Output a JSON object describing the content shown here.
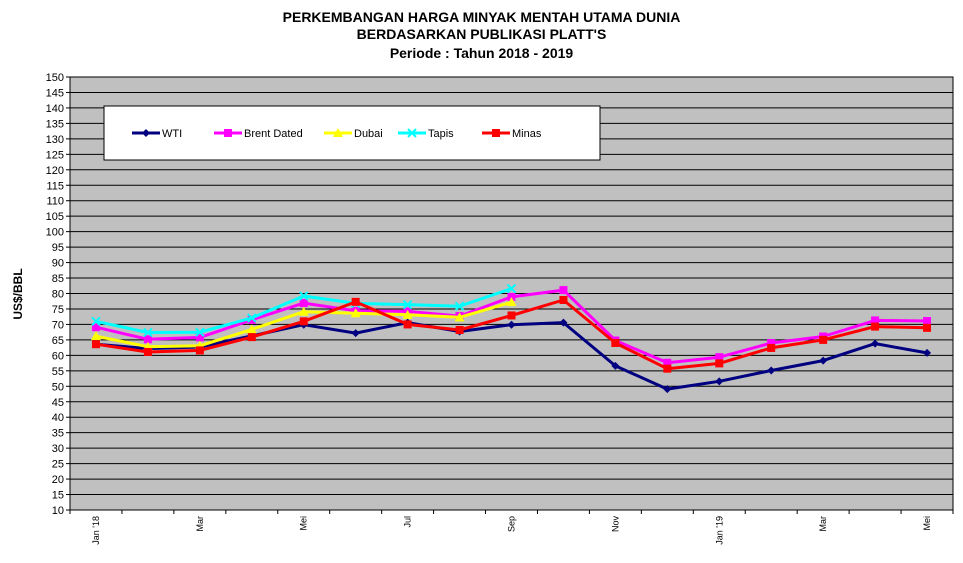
{
  "chart_data": {
    "type": "line",
    "title": [
      "PERKEMBANGAN HARGA MINYAK MENTAH UTAMA DUNIA",
      "BERDASARKAN PUBLIKASI PLATT'S",
      "Periode :  Tahun 2018 - 2019"
    ],
    "ylabel": "US$/BBL",
    "xlabel": "",
    "ylim": [
      10,
      150
    ],
    "yticks": [
      10,
      15,
      20,
      25,
      30,
      35,
      40,
      45,
      50,
      55,
      60,
      65,
      70,
      75,
      80,
      85,
      90,
      95,
      100,
      105,
      110,
      115,
      120,
      125,
      130,
      135,
      140,
      145,
      150
    ],
    "x_tick_labels": [
      {
        "index": 0,
        "label": "Jan '18"
      },
      {
        "index": 2,
        "label": "Mar"
      },
      {
        "index": 4,
        "label": "Mei"
      },
      {
        "index": 6,
        "label": "Jul"
      },
      {
        "index": 8,
        "label": "Sep"
      },
      {
        "index": 10,
        "label": "Nov"
      },
      {
        "index": 12,
        "label": "Jan '19"
      },
      {
        "index": 14,
        "label": "Mar"
      },
      {
        "index": 16,
        "label": "Mei"
      }
    ],
    "n_points": 17,
    "grid": true,
    "legend": "top",
    "series": [
      {
        "name": "WTI",
        "color": "#000080",
        "marker": "diamond",
        "values": [
          63.6,
          62.2,
          62.7,
          66.3,
          69.9,
          67.2,
          70.6,
          67.7,
          69.9,
          70.6,
          56.6,
          49.1,
          51.6,
          55.1,
          58.3,
          63.8,
          60.8
        ]
      },
      {
        "name": "Brent Dated",
        "color": "#FF00FF",
        "marker": "square",
        "values": [
          69.1,
          65.2,
          65.8,
          71.5,
          76.9,
          74.4,
          74.2,
          72.7,
          78.9,
          81.1,
          64.8,
          57.6,
          59.4,
          64.0,
          66.1,
          71.3,
          71.1
        ]
      },
      {
        "name": "Dubai",
        "color": "#FFFF00",
        "marker": "triangle",
        "values": [
          66.2,
          62.8,
          63.1,
          68.4,
          74.1,
          73.6,
          73.1,
          72.3,
          77.2,
          null,
          null,
          null,
          null,
          null,
          null,
          null,
          null
        ]
      },
      {
        "name": "Tapis",
        "color": "#00FFFF",
        "marker": "x",
        "values": [
          71.0,
          67.4,
          67.5,
          72.1,
          79.2,
          76.8,
          76.4,
          75.9,
          81.6,
          null,
          null,
          null,
          null,
          null,
          null,
          null,
          null
        ]
      },
      {
        "name": "Minas",
        "color": "#FF0000",
        "marker": "square",
        "values": [
          63.6,
          61.1,
          61.6,
          65.9,
          71.0,
          77.3,
          70.0,
          68.2,
          72.9,
          77.9,
          64.0,
          55.7,
          57.4,
          62.4,
          65.0,
          69.3,
          68.9
        ]
      }
    ]
  }
}
